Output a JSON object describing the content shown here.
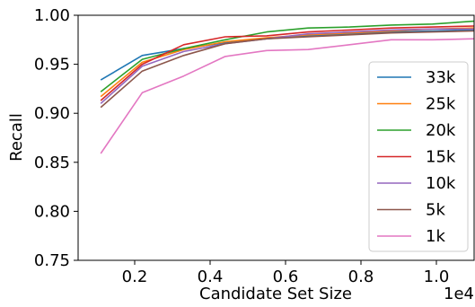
{
  "chart_data": {
    "type": "line",
    "title": "",
    "xlabel": "Candidate Set Size",
    "ylabel": "Recall",
    "x_offset_label": "1e4",
    "xlim": [
      0.05,
      1.1
    ],
    "ylim": [
      0.75,
      1.0
    ],
    "x_ticks": [
      0.2,
      0.4,
      0.6,
      0.8,
      1.0
    ],
    "x_tick_labels": [
      "0.2",
      "0.4",
      "0.6",
      "0.8",
      "1.0"
    ],
    "y_ticks": [
      0.75,
      0.8,
      0.85,
      0.9,
      0.95,
      1.0
    ],
    "y_tick_labels": [
      "0.75",
      "0.80",
      "0.85",
      "0.90",
      "0.95",
      "1.00"
    ],
    "grid": false,
    "legend_position": "right",
    "x": [
      0.11,
      0.22,
      0.33,
      0.44,
      0.55,
      0.66,
      0.77,
      0.88,
      0.99,
      1.1
    ],
    "series": [
      {
        "name": "33k",
        "color": "#1f77b4",
        "values": [
          0.934,
          0.959,
          0.966,
          0.972,
          0.976,
          0.979,
          0.981,
          0.983,
          0.984,
          0.985
        ]
      },
      {
        "name": "25k",
        "color": "#ff7f0e",
        "values": [
          0.917,
          0.952,
          0.965,
          0.973,
          0.977,
          0.98,
          0.982,
          0.984,
          0.986,
          0.987
        ]
      },
      {
        "name": "20k",
        "color": "#2ca02c",
        "values": [
          0.922,
          0.955,
          0.966,
          0.975,
          0.983,
          0.987,
          0.988,
          0.99,
          0.991,
          0.994
        ]
      },
      {
        "name": "15k",
        "color": "#d62728",
        "values": [
          0.913,
          0.95,
          0.97,
          0.978,
          0.979,
          0.983,
          0.985,
          0.987,
          0.988,
          0.989
        ]
      },
      {
        "name": "10k",
        "color": "#9467bd",
        "values": [
          0.91,
          0.948,
          0.963,
          0.971,
          0.976,
          0.981,
          0.983,
          0.985,
          0.986,
          0.986
        ]
      },
      {
        "name": "5k",
        "color": "#8c564b",
        "values": [
          0.906,
          0.943,
          0.959,
          0.971,
          0.976,
          0.978,
          0.98,
          0.982,
          0.983,
          0.984
        ]
      },
      {
        "name": "1k",
        "color": "#e377c2",
        "values": [
          0.859,
          0.921,
          0.938,
          0.958,
          0.964,
          0.965,
          0.97,
          0.975,
          0.975,
          0.976
        ]
      }
    ]
  }
}
